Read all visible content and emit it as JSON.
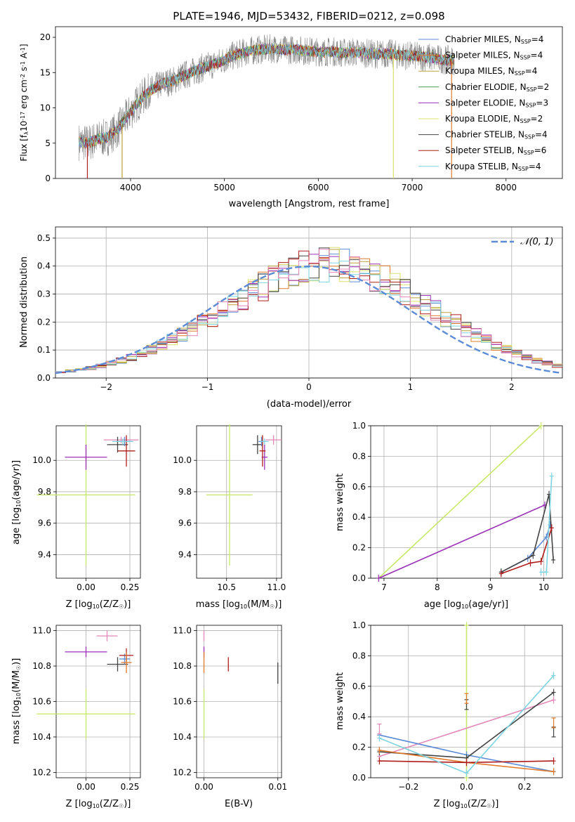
{
  "figure": {
    "title": "PLATE=1946, MJD=53432, FIBERID=0212, z=0.098"
  },
  "colors": {
    "chabrier_miles": "#5b8bd6",
    "salpeter_miles": "#e07a2a",
    "kroupa_miles": "#b8a23a",
    "chabrier_elodie": "#4c9a4c",
    "salpeter_elodie": "#9b30b8",
    "kroupa_elodie": "#d9e36a",
    "chabrier_stelib": "#444444",
    "salpeter_stelib": "#b01d1d",
    "kroupa_stelib": "#7fd3e0",
    "data": "#888888",
    "pink": "#e388b8",
    "lime": "#c8e86a",
    "normal": "#5b8bd6"
  },
  "spectrum_panel": {
    "xlabel": "wavelength [Angstrom, rest frame]",
    "ylabel": "Flux [f$_\\lambda$10$^{-17}$ erg cm$^{-2}$ s$^{-1}$ A$^{-1}$]",
    "legend": [
      {
        "text": "Chabrier MILES, N",
        "sub": "SSP",
        "tail": "=4",
        "color": "chabrier_miles"
      },
      {
        "text": "Salpeter MILES, N",
        "sub": "SSP",
        "tail": "=4",
        "color": "salpeter_miles"
      },
      {
        "text": "Kroupa MILES, N",
        "sub": "SSP",
        "tail": "=4",
        "color": "kroupa_miles"
      },
      {
        "text": "Chabrier ELODIE, N",
        "sub": "SSP",
        "tail": "=2",
        "color": "chabrier_elodie"
      },
      {
        "text": "Salpeter ELODIE, N",
        "sub": "SSP",
        "tail": "=3",
        "color": "salpeter_elodie"
      },
      {
        "text": "Kroupa ELODIE, N",
        "sub": "SSP",
        "tail": "=2",
        "color": "kroupa_elodie"
      },
      {
        "text": "Chabrier STELIB, N",
        "sub": "SSP",
        "tail": "=4",
        "color": "chabrier_stelib"
      },
      {
        "text": "Salpeter STELIB, N",
        "sub": "SSP",
        "tail": "=6",
        "color": "salpeter_stelib"
      },
      {
        "text": "Kroupa STELIB, N",
        "sub": "SSP",
        "tail": "=4",
        "color": "kroupa_stelib"
      }
    ]
  },
  "residual_panel": {
    "xlabel": "(data-model)/error",
    "ylabel": "Normed distribution",
    "legend": "𝒩(0, 1)"
  },
  "age_z_panel": {
    "xlabel": "Z [log$_{10}$(Z/Z$_\\odot$)]",
    "ylabel": "age  [log$_{10}$(age/yr)]"
  },
  "age_mass_panel": {
    "xlabel": "mass [log$_{10}$(M/M$_\\odot$)]"
  },
  "weight_age_panel": {
    "xlabel": "age  [log$_{10}$(age/yr)]",
    "ylabel": "mass weight"
  },
  "mass_z_panel": {
    "xlabel": "Z [log$_{10}$(Z/Z$_\\odot$)]",
    "ylabel": "mass [log$_{10}$(M/M$_\\odot$)]"
  },
  "mass_ebv_panel": {
    "xlabel": "E(B-V)"
  },
  "weight_z_panel": {
    "xlabel": "Z [log$_{10}$(Z/Z$_\\odot$)]",
    "ylabel": "mass weight"
  },
  "chart_data": [
    {
      "type": "line",
      "panel": "spectrum",
      "xlabel": "wavelength [Angstrom, rest frame]",
      "xlim": [
        3200,
        8600
      ],
      "ylim": [
        0,
        21.5
      ],
      "xticks": [
        4000,
        5000,
        6000,
        7000,
        8000
      ],
      "yticks": [
        0,
        5,
        10,
        15,
        20
      ],
      "x": [
        3450,
        3550,
        3650,
        3750,
        3850,
        3950,
        4050,
        4150,
        4250,
        4350,
        4450,
        4550,
        4650,
        4750,
        4850,
        4950,
        5050,
        5150,
        5250,
        5350,
        5450,
        5550,
        5650,
        5750,
        5850,
        5950,
        6050,
        6150,
        6250,
        6350,
        6450,
        6550,
        6650,
        6750,
        6850,
        6950,
        7050,
        7150,
        7250,
        7350,
        7450
      ],
      "series": [
        {
          "name": "Chabrier MILES, N_SSP=4",
          "values": [
            5.2,
            5.0,
            5.6,
            5.8,
            6.8,
            8.5,
            10.3,
            11.8,
            12.8,
            13.5,
            13.8,
            14.5,
            15.0,
            15.6,
            16.0,
            16.5,
            17.2,
            17.6,
            18.0,
            18.2,
            18.3,
            18.4,
            18.2,
            18.3,
            18.1,
            18.0,
            17.9,
            18.0,
            17.8,
            17.9,
            17.8,
            17.7,
            17.6,
            17.7,
            17.5,
            17.4,
            17.3,
            17.2,
            17.0,
            16.8,
            16.7
          ]
        }
      ],
      "grid": false
    },
    {
      "type": "line",
      "panel": "residual-histogram",
      "xlabel": "(data-model)/error",
      "ylabel": "Normed distribution",
      "xlim": [
        -2.5,
        2.5
      ],
      "ylim": [
        0,
        0.54
      ],
      "xticks": [
        -2,
        -1,
        0,
        1,
        2
      ],
      "yticks": [
        0.0,
        0.1,
        0.2,
        0.3,
        0.4,
        0.5
      ],
      "bin_edges_start": -2.5,
      "bin_width": 0.1,
      "series": [
        {
          "name": "N(0,1)",
          "values": [
            0.018,
            0.022,
            0.027,
            0.032,
            0.039,
            0.047,
            0.056,
            0.066,
            0.079,
            0.092,
            0.108,
            0.124,
            0.143,
            0.162,
            0.182,
            0.204,
            0.224,
            0.247,
            0.27,
            0.291,
            0.312,
            0.333,
            0.352,
            0.367,
            0.381,
            0.391,
            0.397,
            0.4,
            0.397,
            0.391,
            0.381,
            0.367,
            0.352,
            0.333,
            0.312,
            0.291,
            0.27,
            0.247,
            0.224,
            0.204,
            0.182,
            0.162,
            0.143,
            0.124,
            0.108,
            0.092,
            0.079,
            0.066,
            0.056,
            0.047,
            0.039
          ]
        }
      ],
      "grid": true,
      "legend_position": "upper right"
    },
    {
      "type": "scatter",
      "panel": "age-vs-metallicity",
      "xlim": [
        -0.17,
        0.31
      ],
      "ylim": [
        9.25,
        10.22
      ],
      "xticks": [
        0.0,
        0.25
      ],
      "yticks": [
        9.4,
        9.6,
        9.8,
        10.0
      ],
      "points": [
        {
          "x": 0.0,
          "y": 9.78,
          "xerr": 0.28,
          "yerr": 0.45,
          "color": "lime"
        },
        {
          "x": 0.0,
          "y": 10.02,
          "xerr": 0.12,
          "yerr": 0.08,
          "color": "salpeter_elodie"
        },
        {
          "x": 0.2,
          "y": 10.13,
          "xerr": 0.1,
          "yerr": 0.02,
          "color": "pink"
        },
        {
          "x": 0.18,
          "y": 10.1,
          "xerr": 0.06,
          "yerr": 0.05,
          "color": "chabrier_stelib"
        },
        {
          "x": 0.22,
          "y": 10.12,
          "xerr": 0.04,
          "yerr": 0.03,
          "color": "chabrier_miles"
        },
        {
          "x": 0.23,
          "y": 10.06,
          "xerr": 0.05,
          "yerr": 0.1,
          "color": "salpeter_stelib"
        },
        {
          "x": 0.21,
          "y": 10.12,
          "xerr": 0.06,
          "yerr": 0.02,
          "color": "kroupa_stelib"
        }
      ]
    },
    {
      "type": "scatter",
      "panel": "age-vs-mass",
      "xlim": [
        10.2,
        11.05
      ],
      "ylim": [
        9.25,
        10.22
      ],
      "xticks": [
        10.5,
        11.0
      ],
      "yticks": [
        9.4,
        9.6,
        9.8,
        10.0
      ],
      "points": [
        {
          "x": 10.53,
          "y": 9.78,
          "xerr": 0.23,
          "yerr": 0.45,
          "color": "lime"
        },
        {
          "x": 10.88,
          "y": 10.02,
          "xerr": 0.03,
          "yerr": 0.08,
          "color": "salpeter_elodie"
        },
        {
          "x": 10.97,
          "y": 10.13,
          "xerr": 0.08,
          "yerr": 0.03,
          "color": "pink"
        },
        {
          "x": 10.81,
          "y": 10.1,
          "xerr": 0.05,
          "yerr": 0.06,
          "color": "chabrier_stelib"
        },
        {
          "x": 10.85,
          "y": 10.12,
          "xerr": 0.03,
          "yerr": 0.03,
          "color": "chabrier_miles"
        },
        {
          "x": 10.86,
          "y": 10.06,
          "xerr": 0.03,
          "yerr": 0.1,
          "color": "salpeter_stelib"
        },
        {
          "x": 10.88,
          "y": 10.12,
          "xerr": 0.04,
          "yerr": 0.02,
          "color": "kroupa_stelib"
        }
      ]
    },
    {
      "type": "line",
      "panel": "mass-weight-vs-age",
      "xlim": [
        6.75,
        10.35
      ],
      "ylim": [
        0,
        1
      ],
      "xticks": [
        7,
        8,
        9,
        10
      ],
      "yticks": [
        0.0,
        0.2,
        0.4,
        0.6,
        0.8,
        1.0
      ],
      "grid": true,
      "series": [
        {
          "name": "Kroupa ELODIE",
          "color": "lime",
          "x": [
            6.9,
            9.95
          ],
          "y": [
            0.0,
            1.0
          ]
        },
        {
          "name": "Salpeter ELODIE",
          "color": "salpeter_elodie",
          "x": [
            6.9,
            10.02
          ],
          "y": [
            0.0,
            0.48
          ]
        },
        {
          "name": "Chabrier MILES",
          "color": "chabrier_miles",
          "x": [
            9.2,
            9.7,
            10.05,
            10.12
          ],
          "y": [
            0.04,
            0.13,
            0.27,
            0.35
          ]
        },
        {
          "name": "Chabrier STELIB",
          "color": "chabrier_stelib",
          "x": [
            9.2,
            9.8,
            10.1,
            10.18
          ],
          "y": [
            0.04,
            0.15,
            0.55,
            0.12
          ]
        },
        {
          "name": "Salpeter STELIB",
          "color": "salpeter_stelib",
          "x": [
            9.2,
            9.75,
            9.95,
            10.15
          ],
          "y": [
            0.03,
            0.1,
            0.11,
            0.33
          ]
        },
        {
          "name": "Kroupa STELIB",
          "color": "kroupa_stelib",
          "x": [
            9.95,
            10.05,
            10.15
          ],
          "y": [
            0.04,
            0.04,
            0.67
          ]
        }
      ]
    },
    {
      "type": "scatter",
      "panel": "mass-vs-metallicity",
      "xlim": [
        -0.17,
        0.31
      ],
      "ylim": [
        10.17,
        11.03
      ],
      "xticks": [
        0.0,
        0.25
      ],
      "yticks": [
        10.2,
        10.4,
        10.6,
        10.8,
        11.0
      ],
      "points": [
        {
          "x": 0.0,
          "y": 10.53,
          "xerr": 0.28,
          "yerr": 0.14,
          "color": "lime"
        },
        {
          "x": 0.0,
          "y": 10.88,
          "xerr": 0.12,
          "yerr": 0.03,
          "color": "salpeter_elodie"
        },
        {
          "x": 0.12,
          "y": 10.97,
          "xerr": 0.06,
          "yerr": 0.03,
          "color": "pink"
        },
        {
          "x": 0.18,
          "y": 10.81,
          "xerr": 0.06,
          "yerr": 0.04,
          "color": "chabrier_stelib"
        },
        {
          "x": 0.22,
          "y": 10.84,
          "xerr": 0.03,
          "yerr": 0.03,
          "color": "chabrier_miles"
        },
        {
          "x": 0.23,
          "y": 10.86,
          "xerr": 0.04,
          "yerr": 0.04,
          "color": "salpeter_stelib"
        },
        {
          "x": 0.23,
          "y": 10.82,
          "xerr": 0.03,
          "yerr": 0.06,
          "color": "salpeter_miles"
        }
      ]
    },
    {
      "type": "scatter",
      "panel": "mass-vs-ebv",
      "xlim": [
        -0.001,
        0.0105
      ],
      "ylim": [
        10.17,
        11.03
      ],
      "xticks": [
        0.0,
        0.01
      ],
      "yticks": [
        10.2,
        10.4,
        10.6,
        10.8,
        11.0
      ],
      "points": [
        {
          "x": 0.0,
          "y": 10.53,
          "yerr": 0.14,
          "color": "lime"
        },
        {
          "x": 0.0,
          "y": 10.88,
          "yerr": 0.03,
          "color": "salpeter_elodie"
        },
        {
          "x": 0.0,
          "y": 10.97,
          "yerr": 0.03,
          "color": "pink"
        },
        {
          "x": 0.0,
          "y": 10.82,
          "yerr": 0.06,
          "color": "salpeter_miles"
        },
        {
          "x": 0.0033,
          "y": 10.81,
          "yerr": 0.04,
          "color": "salpeter_stelib"
        },
        {
          "x": 0.01,
          "y": 10.76,
          "yerr": 0.06,
          "color": "chabrier_stelib"
        }
      ]
    },
    {
      "type": "line",
      "panel": "mass-weight-vs-metallicity",
      "xlim": [
        -0.33,
        0.33
      ],
      "ylim": [
        0,
        1
      ],
      "xticks": [
        -0.2,
        0.0,
        0.2
      ],
      "yticks": [
        0.0,
        0.2,
        0.4,
        0.6,
        0.8,
        1.0
      ],
      "grid": true,
      "series": [
        {
          "name": "Kroupa ELODIE",
          "color": "lime",
          "x": [
            0.0,
            0.0
          ],
          "y": [
            0.0,
            1.0
          ]
        },
        {
          "name": "pink",
          "color": "pink",
          "x": [
            -0.3,
            0.3
          ],
          "y": [
            0.14,
            0.51
          ]
        },
        {
          "name": "Chabrier MILES",
          "color": "chabrier_miles",
          "x": [
            -0.3,
            0.0,
            0.3
          ],
          "y": [
            0.28,
            0.15,
            0.04
          ]
        },
        {
          "name": "Chabrier STELIB",
          "color": "chabrier_stelib",
          "x": [
            -0.3,
            0.0,
            0.3
          ],
          "y": [
            0.17,
            0.13,
            0.56
          ]
        },
        {
          "name": "Salpeter MILES",
          "color": "salpeter_miles",
          "x": [
            -0.3,
            0.0,
            0.3
          ],
          "y": [
            0.18,
            0.1,
            0.04
          ]
        },
        {
          "name": "Salpeter STELIB",
          "color": "salpeter_stelib",
          "x": [
            -0.3,
            0.0,
            0.3
          ],
          "y": [
            0.11,
            0.1,
            0.11
          ]
        },
        {
          "name": "Kroupa STELIB",
          "color": "kroupa_stelib",
          "x": [
            -0.3,
            0.0,
            0.3
          ],
          "y": [
            0.26,
            0.03,
            0.67
          ]
        }
      ]
    }
  ]
}
